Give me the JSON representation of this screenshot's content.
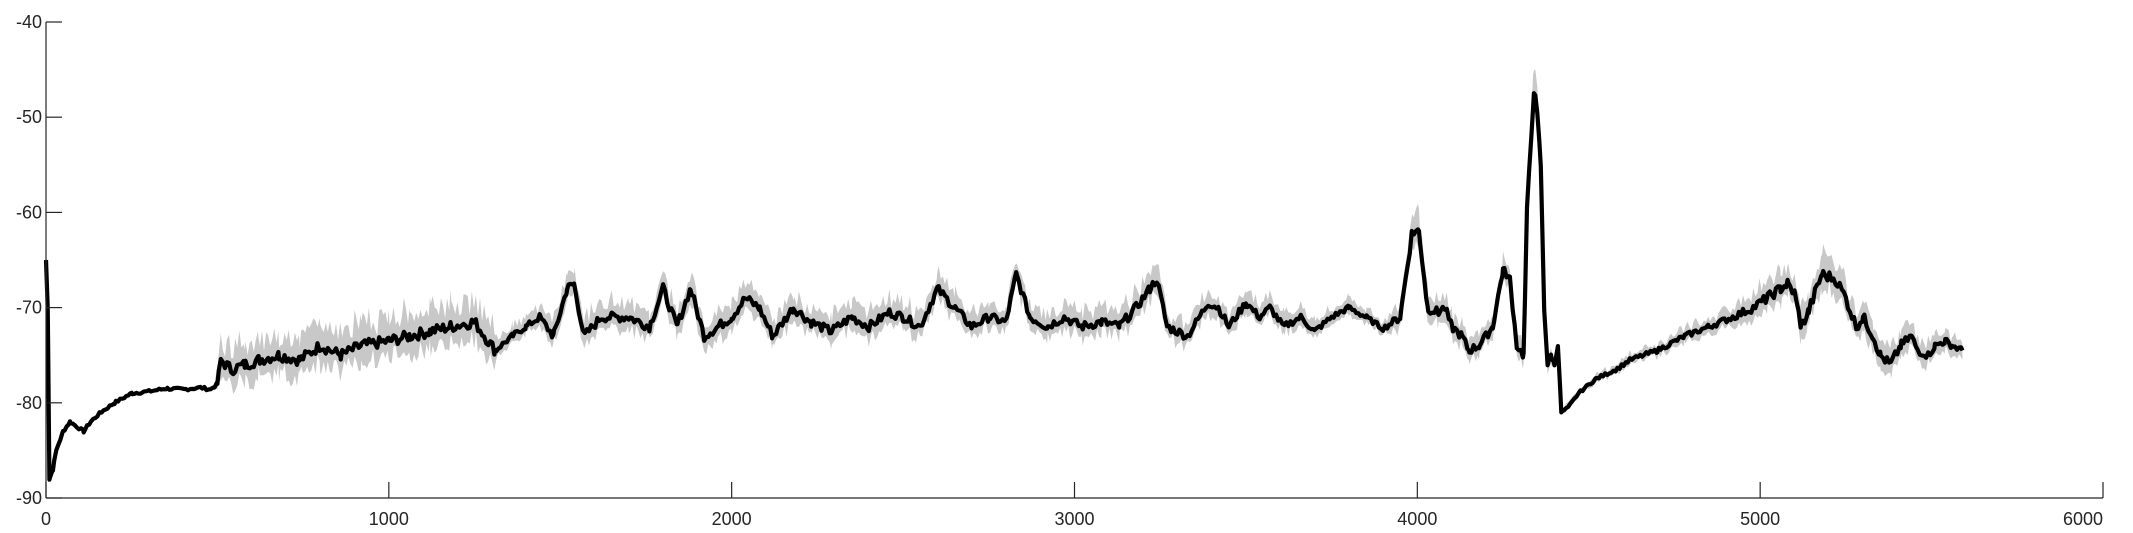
{
  "chart_data": {
    "type": "line",
    "title": "",
    "xlabel": "",
    "ylabel": "",
    "xlim": [
      0,
      6000
    ],
    "ylim": [
      -90,
      -40
    ],
    "x_ticks": [
      0,
      1000,
      2000,
      3000,
      4000,
      5000,
      6000
    ],
    "y_ticks": [
      -90,
      -80,
      -70,
      -60,
      -50,
      -40
    ],
    "x_tick_labels": [
      "0",
      "1000",
      "2000",
      "3000",
      "4000",
      "5000",
      "6000"
    ],
    "y_tick_labels": [
      "-90",
      "-80",
      "-70",
      "-60",
      "-50",
      "-40"
    ],
    "grid": false,
    "colors": {
      "mean_line": "#000000",
      "spread_band": "#c8c8c8",
      "axis": "#262626"
    },
    "series": [
      {
        "role": "mean",
        "points": [
          [
            0,
            -65
          ],
          [
            5,
            -70
          ],
          [
            10,
            -88
          ],
          [
            20,
            -87
          ],
          [
            30,
            -85
          ],
          [
            50,
            -83
          ],
          [
            70,
            -82
          ],
          [
            90,
            -82.5
          ],
          [
            110,
            -83
          ],
          [
            130,
            -82
          ],
          [
            160,
            -81
          ],
          [
            200,
            -80
          ],
          [
            250,
            -79
          ],
          [
            300,
            -78.8
          ],
          [
            350,
            -78.5
          ],
          [
            400,
            -78.6
          ],
          [
            450,
            -78.4
          ],
          [
            480,
            -78.6
          ],
          [
            500,
            -78
          ],
          [
            510,
            -75.5
          ],
          [
            540,
            -76.5
          ],
          [
            580,
            -76
          ],
          [
            620,
            -75.5
          ],
          [
            680,
            -75
          ],
          [
            740,
            -75.5
          ],
          [
            800,
            -74
          ],
          [
            860,
            -75
          ],
          [
            920,
            -74
          ],
          [
            1000,
            -73.5
          ],
          [
            1060,
            -73
          ],
          [
            1120,
            -72.5
          ],
          [
            1180,
            -72
          ],
          [
            1250,
            -71.5
          ],
          [
            1310,
            -74.5
          ],
          [
            1360,
            -73
          ],
          [
            1400,
            -72
          ],
          [
            1440,
            -71
          ],
          [
            1480,
            -73
          ],
          [
            1520,
            -68
          ],
          [
            1540,
            -67.5
          ],
          [
            1570,
            -73
          ],
          [
            1620,
            -71
          ],
          [
            1700,
            -71
          ],
          [
            1760,
            -72
          ],
          [
            1800,
            -68
          ],
          [
            1840,
            -72
          ],
          [
            1880,
            -68
          ],
          [
            1920,
            -73
          ],
          [
            1960,
            -72
          ],
          [
            2000,
            -71
          ],
          [
            2040,
            -69
          ],
          [
            2080,
            -70
          ],
          [
            2120,
            -73
          ],
          [
            2180,
            -70
          ],
          [
            2230,
            -71.5
          ],
          [
            2290,
            -72.5
          ],
          [
            2350,
            -71
          ],
          [
            2400,
            -72
          ],
          [
            2460,
            -70.5
          ],
          [
            2500,
            -71
          ],
          [
            2550,
            -72
          ],
          [
            2600,
            -68
          ],
          [
            2650,
            -70
          ],
          [
            2700,
            -72
          ],
          [
            2750,
            -71
          ],
          [
            2800,
            -71.5
          ],
          [
            2830,
            -66.5
          ],
          [
            2870,
            -71
          ],
          [
            2920,
            -72
          ],
          [
            2970,
            -71
          ],
          [
            3020,
            -72
          ],
          [
            3080,
            -71.5
          ],
          [
            3130,
            -72
          ],
          [
            3180,
            -70
          ],
          [
            3220,
            -68
          ],
          [
            3240,
            -67
          ],
          [
            3270,
            -72
          ],
          [
            3330,
            -73
          ],
          [
            3390,
            -69.5
          ],
          [
            3420,
            -70
          ],
          [
            3450,
            -72
          ],
          [
            3500,
            -69.5
          ],
          [
            3540,
            -71
          ],
          [
            3570,
            -70
          ],
          [
            3610,
            -72
          ],
          [
            3660,
            -71
          ],
          [
            3700,
            -72.5
          ],
          [
            3750,
            -71
          ],
          [
            3800,
            -70
          ],
          [
            3850,
            -71
          ],
          [
            3900,
            -72.2
          ],
          [
            3950,
            -71
          ],
          [
            3985,
            -62
          ],
          [
            4005,
            -62
          ],
          [
            4030,
            -70
          ],
          [
            4060,
            -70.5
          ],
          [
            4080,
            -70
          ],
          [
            4100,
            -72
          ],
          [
            4130,
            -73
          ],
          [
            4150,
            -74.5
          ],
          [
            4180,
            -74
          ],
          [
            4220,
            -72
          ],
          [
            4250,
            -66
          ],
          [
            4270,
            -67
          ],
          [
            4290,
            -74
          ],
          [
            4310,
            -75
          ],
          [
            4320,
            -60
          ],
          [
            4340,
            -47
          ],
          [
            4350,
            -50
          ],
          [
            4360,
            -55
          ],
          [
            4370,
            -70
          ],
          [
            4380,
            -76
          ],
          [
            4390,
            -75
          ],
          [
            4400,
            -76
          ],
          [
            4410,
            -74
          ],
          [
            4420,
            -81
          ],
          [
            4440,
            -80.5
          ],
          [
            4470,
            -79
          ],
          [
            4520,
            -77.5
          ],
          [
            4580,
            -76.5
          ],
          [
            4620,
            -75.5
          ],
          [
            4700,
            -74.5
          ],
          [
            4780,
            -73
          ],
          [
            4850,
            -72
          ],
          [
            4920,
            -71
          ],
          [
            4980,
            -70
          ],
          [
            5020,
            -69
          ],
          [
            5060,
            -68
          ],
          [
            5080,
            -67.5
          ],
          [
            5100,
            -68.5
          ],
          [
            5120,
            -72
          ],
          [
            5140,
            -70.5
          ],
          [
            5180,
            -66.5
          ],
          [
            5220,
            -67
          ],
          [
            5250,
            -69
          ],
          [
            5280,
            -72
          ],
          [
            5300,
            -71
          ],
          [
            5330,
            -73
          ],
          [
            5350,
            -75
          ],
          [
            5380,
            -76
          ],
          [
            5410,
            -74
          ],
          [
            5440,
            -73
          ],
          [
            5460,
            -74.5
          ],
          [
            5490,
            -75
          ],
          [
            5510,
            -74
          ],
          [
            5540,
            -73.5
          ],
          [
            5560,
            -74
          ],
          [
            5590,
            -74.5
          ]
        ],
        "spread": [
          [
            0,
            0
          ],
          [
            490,
            0.3
          ],
          [
            510,
            3
          ],
          [
            1300,
            3
          ],
          [
            1320,
            1.2
          ],
          [
            1400,
            1.2
          ],
          [
            1500,
            2
          ],
          [
            2000,
            2
          ],
          [
            2800,
            1.8
          ],
          [
            3200,
            2
          ],
          [
            3900,
            1
          ],
          [
            3960,
            2
          ],
          [
            4000,
            2.5
          ],
          [
            4050,
            2
          ],
          [
            4300,
            1.5
          ],
          [
            4340,
            3
          ],
          [
            4380,
            1.5
          ],
          [
            4410,
            0.4
          ],
          [
            4900,
            1.3
          ],
          [
            5000,
            2
          ],
          [
            5200,
            2.5
          ],
          [
            5400,
            2
          ],
          [
            5590,
            1.2
          ]
        ]
      }
    ]
  }
}
